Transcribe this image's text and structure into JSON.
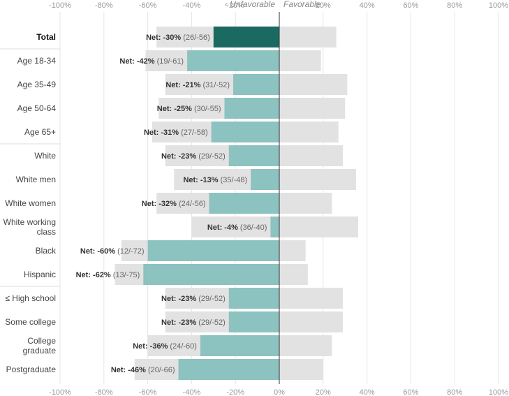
{
  "chart_data": {
    "type": "bar",
    "orientation": "horizontal",
    "diverging": true,
    "xlim": [
      -100,
      100
    ],
    "ticks": [
      "-100%",
      "-80%",
      "-60%",
      "-40%",
      "-20%",
      "0%",
      "20%",
      "40%",
      "60%",
      "80%",
      "100%"
    ],
    "direction_labels": {
      "left": "‹ Unfavorable",
      "right": "Favorable ›"
    },
    "net_prefix": "Net: ",
    "colors": {
      "total_unfavorable": "#1b6a61",
      "unfavorable": "#8cc2bf",
      "background": "#e2e2e2",
      "grid": "#e6e6e6",
      "zero_line": "#333333"
    },
    "categories": [
      {
        "label": [
          "Total"
        ],
        "unfavorable": 30,
        "favorable": 26,
        "net": "-30%",
        "detail": "(26/-56)",
        "total": true,
        "group_end": true
      },
      {
        "label": [
          "Age 18-34"
        ],
        "unfavorable": 42,
        "favorable": 19,
        "net": "-42%",
        "detail": "(19/-61)"
      },
      {
        "label": [
          "Age 35-49"
        ],
        "unfavorable": 21,
        "favorable": 31,
        "net": "-21%",
        "detail": "(31/-52)"
      },
      {
        "label": [
          "Age 50-64"
        ],
        "unfavorable": 25,
        "favorable": 30,
        "net": "-25%",
        "detail": "(30/-55)"
      },
      {
        "label": [
          "Age 65+"
        ],
        "unfavorable": 31,
        "favorable": 27,
        "net": "-31%",
        "detail": "(27/-58)",
        "group_end": true
      },
      {
        "label": [
          "White"
        ],
        "unfavorable": 23,
        "favorable": 29,
        "net": "-23%",
        "detail": "(29/-52)"
      },
      {
        "label": [
          "White men"
        ],
        "unfavorable": 13,
        "favorable": 35,
        "net": "-13%",
        "detail": "(35/-48)"
      },
      {
        "label": [
          "White women"
        ],
        "unfavorable": 32,
        "favorable": 24,
        "net": "-32%",
        "detail": "(24/-56)"
      },
      {
        "label": [
          "White working",
          "class"
        ],
        "unfavorable": 4,
        "favorable": 36,
        "net": "-4%",
        "detail": "(36/-40)"
      },
      {
        "label": [
          "Black"
        ],
        "unfavorable": 60,
        "favorable": 12,
        "net": "-60%",
        "detail": "(12/-72)"
      },
      {
        "label": [
          "Hispanic"
        ],
        "unfavorable": 62,
        "favorable": 13,
        "net": "-62%",
        "detail": "(13/-75)",
        "group_end": true
      },
      {
        "label": [
          "≤ High school"
        ],
        "unfavorable": 23,
        "favorable": 29,
        "net": "-23%",
        "detail": "(29/-52)"
      },
      {
        "label": [
          "Some college"
        ],
        "unfavorable": 23,
        "favorable": 29,
        "net": "-23%",
        "detail": "(29/-52)"
      },
      {
        "label": [
          "College",
          "graduate"
        ],
        "unfavorable": 36,
        "favorable": 24,
        "net": "-36%",
        "detail": "(24/-60)"
      },
      {
        "label": [
          "Postgraduate"
        ],
        "unfavorable": 46,
        "favorable": 20,
        "net": "-46%",
        "detail": "(20/-66)"
      }
    ]
  }
}
